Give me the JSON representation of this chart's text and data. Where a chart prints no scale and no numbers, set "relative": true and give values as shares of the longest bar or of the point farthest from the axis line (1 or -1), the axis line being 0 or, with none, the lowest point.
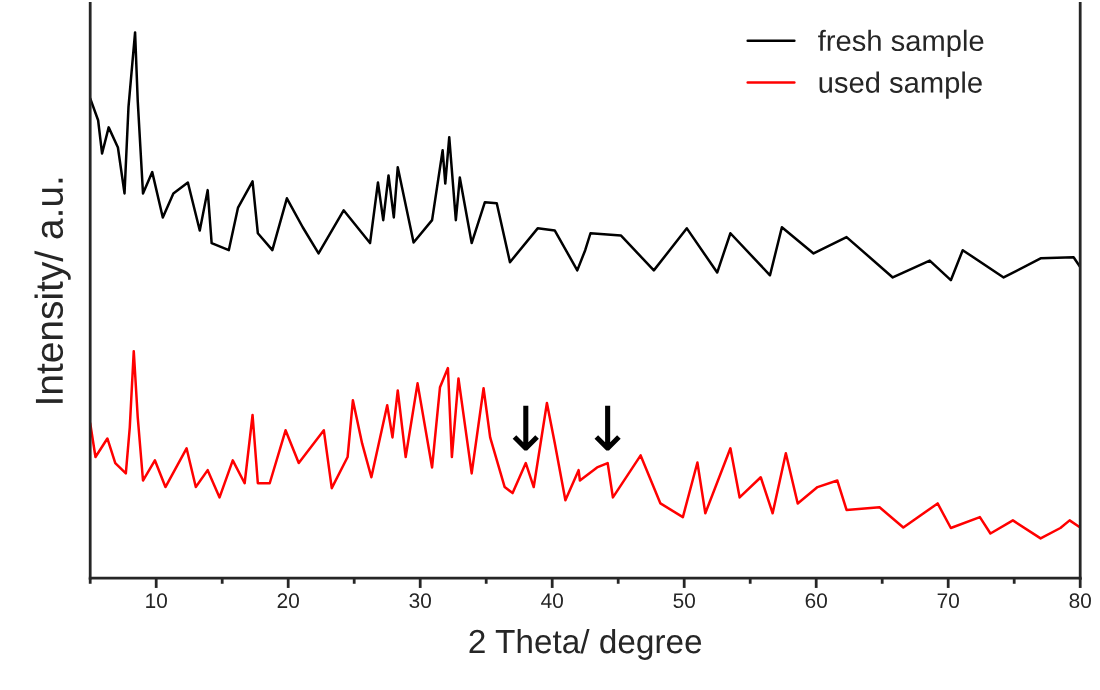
{
  "chart_data": {
    "type": "line",
    "relative": true,
    "xlabel": "2 Theta/ degree",
    "ylabel": "Intensity/ a.u.",
    "xlim": [
      5,
      80
    ],
    "xticks": [
      10,
      20,
      30,
      40,
      50,
      60,
      70,
      80
    ],
    "tick_labels": "x",
    "legend": "top right",
    "grid": false,
    "annotations": [
      {
        "text": "↓",
        "x": 38.0,
        "y": 0.211
      },
      {
        "text": "↓",
        "x": 44.2,
        "y": 0.211
      }
    ],
    "series": [
      {
        "name": "fresh sample",
        "color": "#000000",
        "x": [
          5.0,
          5.6,
          5.9,
          6.4,
          7.1,
          7.6,
          7.9,
          8.4,
          8.6,
          9.0,
          9.7,
          10.5,
          11.3,
          12.4,
          13.3,
          13.9,
          14.2,
          15.5,
          16.2,
          17.3,
          17.7,
          18.8,
          19.9,
          21.1,
          22.3,
          24.2,
          26.2,
          26.8,
          27.2,
          27.6,
          28.0,
          28.3,
          29.5,
          30.9,
          31.7,
          31.9,
          32.2,
          32.7,
          33.0,
          33.9,
          34.9,
          35.8,
          36.8,
          38.9,
          40.2,
          41.9,
          42.5,
          42.9,
          45.2,
          47.7,
          50.2,
          52.5,
          53.5,
          56.5,
          57.4,
          59.8,
          62.3,
          65.8,
          68.6,
          70.2,
          71.1,
          74.2,
          77.0,
          79.5,
          80.0
        ],
        "values": [
          0.879,
          0.839,
          0.778,
          0.826,
          0.789,
          0.705,
          0.863,
          1.0,
          0.875,
          0.705,
          0.744,
          0.661,
          0.705,
          0.725,
          0.637,
          0.711,
          0.614,
          0.601,
          0.679,
          0.727,
          0.632,
          0.601,
          0.696,
          0.643,
          0.595,
          0.674,
          0.614,
          0.725,
          0.656,
          0.738,
          0.661,
          0.753,
          0.615,
          0.656,
          0.784,
          0.723,
          0.808,
          0.656,
          0.734,
          0.614,
          0.689,
          0.687,
          0.579,
          0.641,
          0.637,
          0.564,
          0.601,
          0.632,
          0.628,
          0.564,
          0.641,
          0.56,
          0.632,
          0.555,
          0.643,
          0.595,
          0.625,
          0.551,
          0.582,
          0.546,
          0.601,
          0.551,
          0.586,
          0.588,
          0.57
        ]
      },
      {
        "name": "used sample",
        "color": "#ff0000",
        "x": [
          5.0,
          5.4,
          6.3,
          6.9,
          7.7,
          8.0,
          8.3,
          8.6,
          9.0,
          9.9,
          10.7,
          12.3,
          13.0,
          13.9,
          14.8,
          15.8,
          16.7,
          17.3,
          17.7,
          18.6,
          19.8,
          20.8,
          22.7,
          23.3,
          24.5,
          24.9,
          25.6,
          26.3,
          27.5,
          27.9,
          28.3,
          28.9,
          29.8,
          30.9,
          31.5,
          32.1,
          32.4,
          32.9,
          33.9,
          34.8,
          35.3,
          36.4,
          37.0,
          38.0,
          38.6,
          39.6,
          40.2,
          41.0,
          42.0,
          42.1,
          43.4,
          44.2,
          44.6,
          46.7,
          48.2,
          49.9,
          51.0,
          51.6,
          53.5,
          54.2,
          55.8,
          56.7,
          57.7,
          58.6,
          60.1,
          61.6,
          62.3,
          64.8,
          66.6,
          69.2,
          70.2,
          72.4,
          73.2,
          74.9,
          77.0,
          78.5,
          79.2,
          80.0
        ],
        "values": [
          0.284,
          0.222,
          0.256,
          0.211,
          0.192,
          0.277,
          0.416,
          0.295,
          0.179,
          0.216,
          0.167,
          0.238,
          0.167,
          0.198,
          0.148,
          0.216,
          0.174,
          0.299,
          0.174,
          0.174,
          0.271,
          0.211,
          0.271,
          0.165,
          0.222,
          0.326,
          0.247,
          0.185,
          0.317,
          0.258,
          0.344,
          0.222,
          0.357,
          0.203,
          0.35,
          0.385,
          0.222,
          0.366,
          0.192,
          0.348,
          0.258,
          0.167,
          0.156,
          0.211,
          0.167,
          0.321,
          0.247,
          0.143,
          0.198,
          0.179,
          0.203,
          0.211,
          0.148,
          0.225,
          0.137,
          0.112,
          0.212,
          0.119,
          0.238,
          0.148,
          0.185,
          0.119,
          0.229,
          0.137,
          0.167,
          0.179,
          0.125,
          0.13,
          0.093,
          0.137,
          0.092,
          0.112,
          0.082,
          0.106,
          0.073,
          0.092,
          0.106,
          0.093
        ]
      }
    ]
  }
}
